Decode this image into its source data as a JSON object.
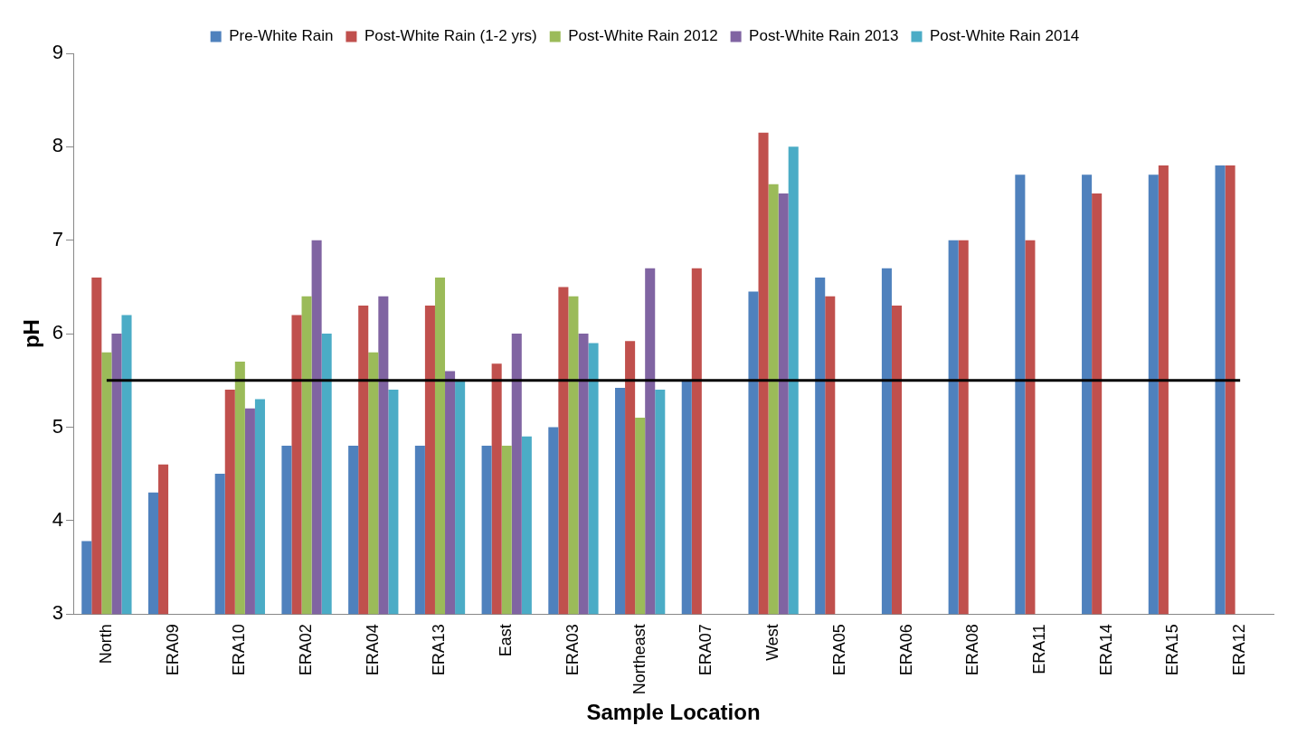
{
  "chart_data": {
    "type": "bar",
    "xlabel": "Sample Location",
    "ylabel": "pH",
    "categories": [
      "North",
      "ERA09",
      "ERA10",
      "ERA02",
      "ERA04",
      "ERA13",
      "East",
      "ERA03",
      "Northeast",
      "ERA07",
      "West",
      "ERA05",
      "ERA06",
      "ERA08",
      "ERA11",
      "ERA14",
      "ERA15",
      "ERA12"
    ],
    "series": [
      {
        "name": "Pre-White Rain",
        "color": "#4f81bd",
        "values": [
          3.78,
          4.3,
          4.5,
          4.8,
          4.8,
          4.8,
          4.8,
          5.0,
          5.42,
          5.5,
          6.45,
          6.6,
          6.7,
          7.0,
          7.7,
          7.7,
          7.7,
          7.8
        ]
      },
      {
        "name": "Post-White Rain (1-2 yrs)",
        "color": "#c0504d",
        "values": [
          6.6,
          4.6,
          5.4,
          6.2,
          6.3,
          6.3,
          5.68,
          6.5,
          5.92,
          6.7,
          8.15,
          6.4,
          6.3,
          7.0,
          7.0,
          7.5,
          7.8,
          7.8
        ]
      },
      {
        "name": "Post-White Rain 2012",
        "color": "#9bbb59",
        "values": [
          5.8,
          null,
          5.7,
          6.4,
          5.8,
          6.6,
          4.8,
          6.4,
          5.1,
          null,
          7.6,
          null,
          null,
          null,
          null,
          null,
          null,
          null
        ]
      },
      {
        "name": "Post-White Rain 2013",
        "color": "#8064a2",
        "values": [
          6.0,
          null,
          5.2,
          7.0,
          6.4,
          5.6,
          6.0,
          6.0,
          6.7,
          null,
          7.5,
          null,
          null,
          null,
          null,
          null,
          null,
          null
        ]
      },
      {
        "name": "Post-White Rain 2014",
        "color": "#4bacc6",
        "values": [
          6.2,
          null,
          5.3,
          6.0,
          5.4,
          5.5,
          4.9,
          5.9,
          5.4,
          null,
          8.0,
          null,
          null,
          null,
          null,
          null,
          null,
          null
        ]
      }
    ],
    "ylim": [
      3,
      9
    ],
    "yticks": [
      3,
      4,
      5,
      6,
      7,
      8,
      9
    ],
    "grid": false,
    "legend": "top",
    "ref_lines": [
      {
        "axis": "y",
        "value": 5.5,
        "color": "#000000"
      }
    ]
  }
}
